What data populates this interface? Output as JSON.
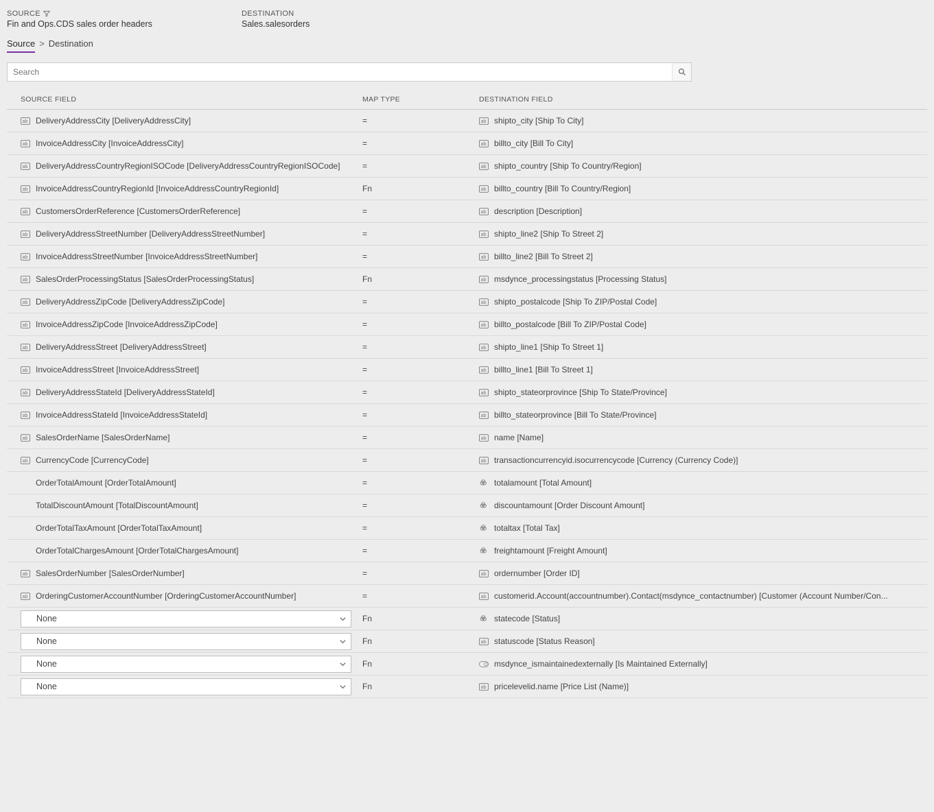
{
  "header": {
    "source_label": "SOURCE",
    "source_value": "Fin and Ops.CDS sales order headers",
    "destination_label": "DESTINATION",
    "destination_value": "Sales.salesorders"
  },
  "tabs": {
    "source": "Source",
    "separator": ">",
    "destination": "Destination"
  },
  "search": {
    "placeholder": "Search"
  },
  "columns": {
    "source": "SOURCE FIELD",
    "map": "MAP TYPE",
    "destination": "DESTINATION FIELD"
  },
  "select_placeholder": "None",
  "rows": [
    {
      "src": "DeliveryAddressCity [DeliveryAddressCity]",
      "map": "=",
      "dst": "shipto_city [Ship To City]",
      "srcIcon": "text",
      "dstIcon": "text"
    },
    {
      "src": "InvoiceAddressCity [InvoiceAddressCity]",
      "map": "=",
      "dst": "billto_city [Bill To City]",
      "srcIcon": "text",
      "dstIcon": "text"
    },
    {
      "src": "DeliveryAddressCountryRegionISOCode [DeliveryAddressCountryRegionISOCode]",
      "map": "=",
      "dst": "shipto_country [Ship To Country/Region]",
      "srcIcon": "text",
      "dstIcon": "text"
    },
    {
      "src": "InvoiceAddressCountryRegionId [InvoiceAddressCountryRegionId]",
      "map": "Fn",
      "dst": "billto_country [Bill To Country/Region]",
      "srcIcon": "text",
      "dstIcon": "text"
    },
    {
      "src": "CustomersOrderReference [CustomersOrderReference]",
      "map": "=",
      "dst": "description [Description]",
      "srcIcon": "text",
      "dstIcon": "text"
    },
    {
      "src": "DeliveryAddressStreetNumber [DeliveryAddressStreetNumber]",
      "map": "=",
      "dst": "shipto_line2 [Ship To Street 2]",
      "srcIcon": "text",
      "dstIcon": "text"
    },
    {
      "src": "InvoiceAddressStreetNumber [InvoiceAddressStreetNumber]",
      "map": "=",
      "dst": "billto_line2 [Bill To Street 2]",
      "srcIcon": "text",
      "dstIcon": "text"
    },
    {
      "src": "SalesOrderProcessingStatus [SalesOrderProcessingStatus]",
      "map": "Fn",
      "dst": "msdynce_processingstatus [Processing Status]",
      "srcIcon": "text",
      "dstIcon": "text"
    },
    {
      "src": "DeliveryAddressZipCode [DeliveryAddressZipCode]",
      "map": "=",
      "dst": "shipto_postalcode [Ship To ZIP/Postal Code]",
      "srcIcon": "text",
      "dstIcon": "text"
    },
    {
      "src": "InvoiceAddressZipCode [InvoiceAddressZipCode]",
      "map": "=",
      "dst": "billto_postalcode [Bill To ZIP/Postal Code]",
      "srcIcon": "text",
      "dstIcon": "text"
    },
    {
      "src": "DeliveryAddressStreet [DeliveryAddressStreet]",
      "map": "=",
      "dst": "shipto_line1 [Ship To Street 1]",
      "srcIcon": "text",
      "dstIcon": "text"
    },
    {
      "src": "InvoiceAddressStreet [InvoiceAddressStreet]",
      "map": "=",
      "dst": "billto_line1 [Bill To Street 1]",
      "srcIcon": "text",
      "dstIcon": "text"
    },
    {
      "src": "DeliveryAddressStateId [DeliveryAddressStateId]",
      "map": "=",
      "dst": "shipto_stateorprovince [Ship To State/Province]",
      "srcIcon": "text",
      "dstIcon": "text"
    },
    {
      "src": "InvoiceAddressStateId [InvoiceAddressStateId]",
      "map": "=",
      "dst": "billto_stateorprovince [Bill To State/Province]",
      "srcIcon": "text",
      "dstIcon": "text"
    },
    {
      "src": "SalesOrderName [SalesOrderName]",
      "map": "=",
      "dst": "name [Name]",
      "srcIcon": "text",
      "dstIcon": "text"
    },
    {
      "src": "CurrencyCode [CurrencyCode]",
      "map": "=",
      "dst": "transactioncurrencyid.isocurrencycode [Currency (Currency Code)]",
      "srcIcon": "text",
      "dstIcon": "text"
    },
    {
      "src": "OrderTotalAmount [OrderTotalAmount]",
      "map": "=",
      "dst": "totalamount [Total Amount]",
      "srcIcon": "none",
      "dstIcon": "currency"
    },
    {
      "src": "TotalDiscountAmount [TotalDiscountAmount]",
      "map": "=",
      "dst": "discountamount [Order Discount Amount]",
      "srcIcon": "none",
      "dstIcon": "currency"
    },
    {
      "src": "OrderTotalTaxAmount [OrderTotalTaxAmount]",
      "map": "=",
      "dst": "totaltax [Total Tax]",
      "srcIcon": "none",
      "dstIcon": "currency"
    },
    {
      "src": "OrderTotalChargesAmount [OrderTotalChargesAmount]",
      "map": "=",
      "dst": "freightamount [Freight Amount]",
      "srcIcon": "none",
      "dstIcon": "currency"
    },
    {
      "src": "SalesOrderNumber [SalesOrderNumber]",
      "map": "=",
      "dst": "ordernumber [Order ID]",
      "srcIcon": "text",
      "dstIcon": "text"
    },
    {
      "src": "OrderingCustomerAccountNumber [OrderingCustomerAccountNumber]",
      "map": "=",
      "dst": "customerid.Account(accountnumber).Contact(msdynce_contactnumber) [Customer (Account Number/Con...",
      "srcIcon": "text",
      "dstIcon": "text"
    },
    {
      "select": true,
      "map": "Fn",
      "dst": "statecode [Status]",
      "dstIcon": "currency"
    },
    {
      "select": true,
      "map": "Fn",
      "dst": "statuscode [Status Reason]",
      "dstIcon": "text"
    },
    {
      "select": true,
      "map": "Fn",
      "dst": "msdynce_ismaintainedexternally [Is Maintained Externally]",
      "dstIcon": "boolean"
    },
    {
      "select": true,
      "map": "Fn",
      "dst": "pricelevelid.name [Price List (Name)]",
      "dstIcon": "text"
    }
  ]
}
